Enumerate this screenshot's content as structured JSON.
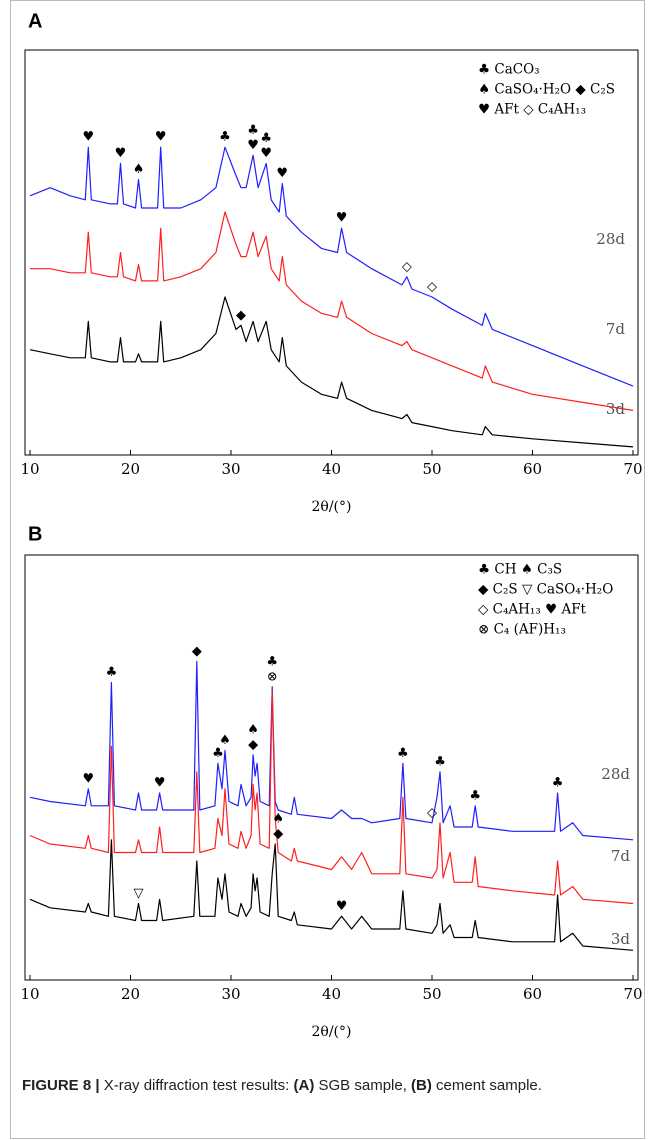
{
  "chart_data": [
    {
      "type": "line",
      "panel_label": "A",
      "x_label": "2θ/(°)",
      "xlim": [
        10,
        70
      ],
      "xticks": [
        10,
        20,
        30,
        40,
        50,
        60,
        70
      ],
      "ylim": [
        0,
        100
      ],
      "x": [
        10,
        12,
        14,
        15.5,
        15.8,
        16.1,
        18,
        18.7,
        19,
        19.3,
        20.5,
        20.8,
        21.1,
        22.7,
        23,
        23.3,
        25,
        27,
        28.5,
        29.4,
        30.5,
        31,
        31.5,
        32.2,
        32.7,
        33.5,
        34,
        34.8,
        35.1,
        35.5,
        37,
        39,
        40.6,
        41,
        41.5,
        44,
        47,
        47.5,
        48,
        50,
        52,
        55,
        55.3,
        56,
        60,
        65,
        70
      ],
      "series": [
        {
          "name": "28d",
          "color": "#1f1fff",
          "values": [
            64,
            66,
            64,
            63,
            76,
            63,
            62,
            62,
            72,
            62,
            61,
            68,
            61,
            61,
            76,
            61,
            61,
            63,
            66,
            76,
            69,
            66,
            66,
            74,
            66,
            72,
            63,
            60,
            67,
            59,
            55,
            51,
            50,
            56,
            50,
            46,
            42,
            44,
            41,
            39,
            36,
            32,
            35,
            31,
            27,
            22,
            17
          ]
        },
        {
          "name": "7d",
          "color": "#ff1f1f",
          "values": [
            46,
            46,
            45,
            45,
            55,
            45,
            44,
            44,
            50,
            44,
            43,
            47,
            43,
            43,
            56,
            43,
            44,
            46,
            50,
            60,
            52,
            49,
            49,
            55,
            49,
            54,
            46,
            43,
            49,
            42,
            38,
            35,
            34,
            38,
            34,
            30,
            27,
            28,
            26,
            24,
            22,
            19,
            22,
            18,
            15,
            13,
            11
          ]
        },
        {
          "name": "3d",
          "color": "#000000",
          "values": [
            26,
            25,
            24,
            24,
            33,
            24,
            23,
            23,
            29,
            23,
            23,
            25,
            23,
            23,
            33,
            23,
            24,
            26,
            30,
            39,
            31,
            32,
            28,
            33,
            28,
            33,
            26,
            23,
            29,
            22,
            18,
            15,
            14,
            18,
            14,
            11,
            9,
            10,
            8,
            7,
            6,
            5,
            7,
            5,
            4,
            3,
            2
          ]
        }
      ],
      "annotations": [
        {
          "series": 0,
          "x": 15.8,
          "symbols": [
            "♥"
          ]
        },
        {
          "series": 0,
          "x": 19,
          "symbols": [
            "♥"
          ]
        },
        {
          "series": 0,
          "x": 20.8,
          "symbols": [
            "♠"
          ]
        },
        {
          "series": 0,
          "x": 23,
          "symbols": [
            "♥"
          ]
        },
        {
          "series": 0,
          "x": 29.4,
          "symbols": [
            "♣"
          ]
        },
        {
          "series": 0,
          "x": 32.2,
          "symbols": [
            "♣",
            "♥"
          ]
        },
        {
          "series": 0,
          "x": 33.5,
          "symbols": [
            "♣",
            "♥"
          ]
        },
        {
          "series": 0,
          "x": 35.1,
          "symbols": [
            "♥"
          ]
        },
        {
          "series": 0,
          "x": 41,
          "symbols": [
            "♥"
          ]
        },
        {
          "series": 0,
          "x": 47.5,
          "symbols": [
            "◇"
          ]
        },
        {
          "series": 0,
          "x": 50,
          "symbols": [
            "◇"
          ]
        },
        {
          "series": 2,
          "x": 31,
          "symbols": [
            "◆"
          ]
        }
      ],
      "legend_lines": [
        "♣ CaCO₃",
        "♠ CaSO₄·H₂O ◆ C₂S",
        "♥ AFt ◇ C₄AH₁₃"
      ]
    },
    {
      "type": "line",
      "panel_label": "B",
      "x_label": "2θ/(°)",
      "xlim": [
        10,
        70
      ],
      "xticks": [
        10,
        20,
        30,
        40,
        50,
        60,
        70
      ],
      "ylim": [
        0,
        100
      ],
      "x": [
        10,
        12,
        15.5,
        15.8,
        16.1,
        17.8,
        18.1,
        18.4,
        20.5,
        20.8,
        21.1,
        22.6,
        22.9,
        23.2,
        26.3,
        26.6,
        26.9,
        28.4,
        28.7,
        29.1,
        29.4,
        29.8,
        30.7,
        31,
        31.5,
        32,
        32.2,
        32.4,
        32.6,
        32.9,
        33.8,
        34.1,
        34.4,
        34.7,
        36,
        36.3,
        36.6,
        40,
        41,
        42,
        43,
        44,
        46.8,
        47.1,
        47.4,
        50,
        50.5,
        50.8,
        51.1,
        51.8,
        52.2,
        54,
        54.3,
        54.6,
        58,
        62.2,
        62.5,
        62.8,
        64,
        65,
        70
      ],
      "series": [
        {
          "name": "28d",
          "color": "#1f1fff",
          "values": [
            43,
            42,
            41,
            45,
            41,
            41,
            70,
            41,
            40,
            44,
            40,
            40,
            44,
            40,
            40,
            75,
            40,
            41,
            51,
            45,
            54,
            42,
            41,
            46,
            41,
            43,
            53,
            48,
            51,
            42,
            41,
            69,
            42,
            40,
            39,
            43,
            39,
            38,
            40,
            38,
            38,
            37,
            38,
            51,
            38,
            37,
            43,
            49,
            37,
            41,
            36,
            36,
            41,
            36,
            35,
            35,
            44,
            35,
            37,
            34,
            33
          ]
        },
        {
          "name": "7d",
          "color": "#ff1f1f",
          "values": [
            34,
            32,
            31,
            34,
            31,
            30,
            55,
            30,
            30,
            33,
            30,
            30,
            36,
            30,
            30,
            49,
            30,
            31,
            38,
            34,
            45,
            32,
            31,
            35,
            31,
            34,
            46,
            40,
            44,
            32,
            31,
            68,
            38,
            30,
            28,
            31,
            28,
            26,
            29,
            26,
            30,
            25,
            25,
            43,
            25,
            24,
            26,
            37,
            24,
            30,
            23,
            23,
            29,
            22,
            21,
            20,
            28,
            20,
            22,
            19,
            18
          ]
        },
        {
          "name": "3d",
          "color": "#000000",
          "values": [
            19,
            17,
            16,
            18,
            16,
            15,
            33,
            15,
            14,
            18,
            14,
            14,
            19,
            14,
            15,
            28,
            15,
            15,
            24,
            19,
            25,
            16,
            15,
            18,
            15,
            17,
            25,
            21,
            24,
            16,
            15,
            25,
            32,
            15,
            14,
            16,
            13,
            12,
            15,
            12,
            15,
            12,
            12,
            21,
            12,
            11,
            13,
            18,
            11,
            13,
            10,
            10,
            14,
            10,
            9,
            9,
            20,
            9,
            11,
            8,
            7
          ]
        }
      ],
      "annotations": [
        {
          "series": 0,
          "x": 15.8,
          "symbols": [
            "♥"
          ]
        },
        {
          "series": 0,
          "x": 18.1,
          "symbols": [
            "♣"
          ]
        },
        {
          "series": 0,
          "x": 22.9,
          "symbols": [
            "♥"
          ]
        },
        {
          "series": 0,
          "x": 26.6,
          "symbols": [
            "◆"
          ]
        },
        {
          "series": 0,
          "x": 28.7,
          "symbols": [
            "♣"
          ]
        },
        {
          "series": 0,
          "x": 29.4,
          "symbols": [
            "♠"
          ]
        },
        {
          "series": 0,
          "x": 32.2,
          "symbols": [
            "♠",
            "◆"
          ]
        },
        {
          "series": 0,
          "x": 34.1,
          "symbols": [
            "♣",
            "⊗"
          ]
        },
        {
          "series": 0,
          "x": 47.1,
          "symbols": [
            "♣"
          ]
        },
        {
          "series": 0,
          "x": 50,
          "symbols": [
            "◇"
          ]
        },
        {
          "series": 0,
          "x": 50.8,
          "symbols": [
            "♣"
          ]
        },
        {
          "series": 0,
          "x": 54.3,
          "symbols": [
            "♣"
          ]
        },
        {
          "series": 0,
          "x": 62.5,
          "symbols": [
            "♣"
          ]
        },
        {
          "series": 2,
          "x": 20.8,
          "symbols": [
            "▽"
          ]
        },
        {
          "series": 2,
          "x": 34.7,
          "symbols": [
            "♠",
            "◆"
          ]
        },
        {
          "series": 2,
          "x": 41,
          "symbols": [
            "♥"
          ]
        }
      ],
      "legend_lines": [
        "♣ CH ♠ C₃S",
        "◆ C₂S ▽ CaSO₄·H₂O",
        "◇ C₄AH₁₃ ♥ AFt",
        "⊗ C₄ (AF)H₁₃"
      ]
    }
  ],
  "caption": [
    "FIGURE 8 |",
    " X-ray diffraction test results: ",
    "(A)",
    " SGB sample, ",
    "(B)",
    " cement sample."
  ]
}
